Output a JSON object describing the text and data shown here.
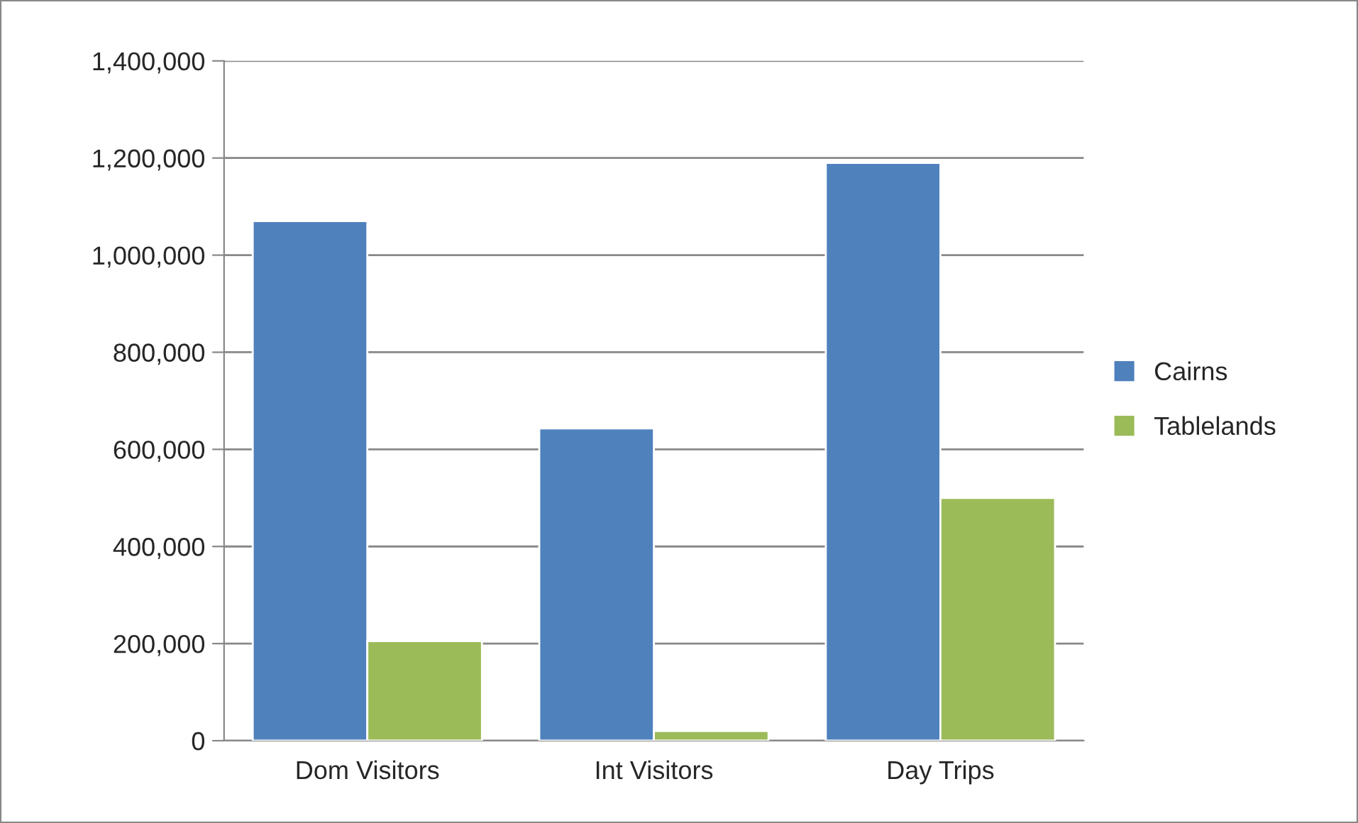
{
  "chart_data": {
    "type": "bar",
    "categories": [
      "Dom Visitors",
      "Int Visitors",
      "Day Trips"
    ],
    "series": [
      {
        "name": "Cairns",
        "color": "#4f81bd",
        "values": [
          1070000,
          643000,
          1190000
        ]
      },
      {
        "name": "Tablelands",
        "color": "#9bbb59",
        "values": [
          205000,
          20000,
          500000
        ]
      }
    ],
    "ylim": [
      0,
      1400000
    ],
    "yticks": [
      {
        "value": 0,
        "label": "0"
      },
      {
        "value": 200000,
        "label": "200,000"
      },
      {
        "value": 400000,
        "label": "400,000"
      },
      {
        "value": 600000,
        "label": "600,000"
      },
      {
        "value": 800000,
        "label": "800,000"
      },
      {
        "value": 1000000,
        "label": "1,000,000"
      },
      {
        "value": 1200000,
        "label": "1,200,000"
      },
      {
        "value": 1400000,
        "label": "1,400,000"
      }
    ],
    "grid": "y",
    "legend": "right"
  }
}
